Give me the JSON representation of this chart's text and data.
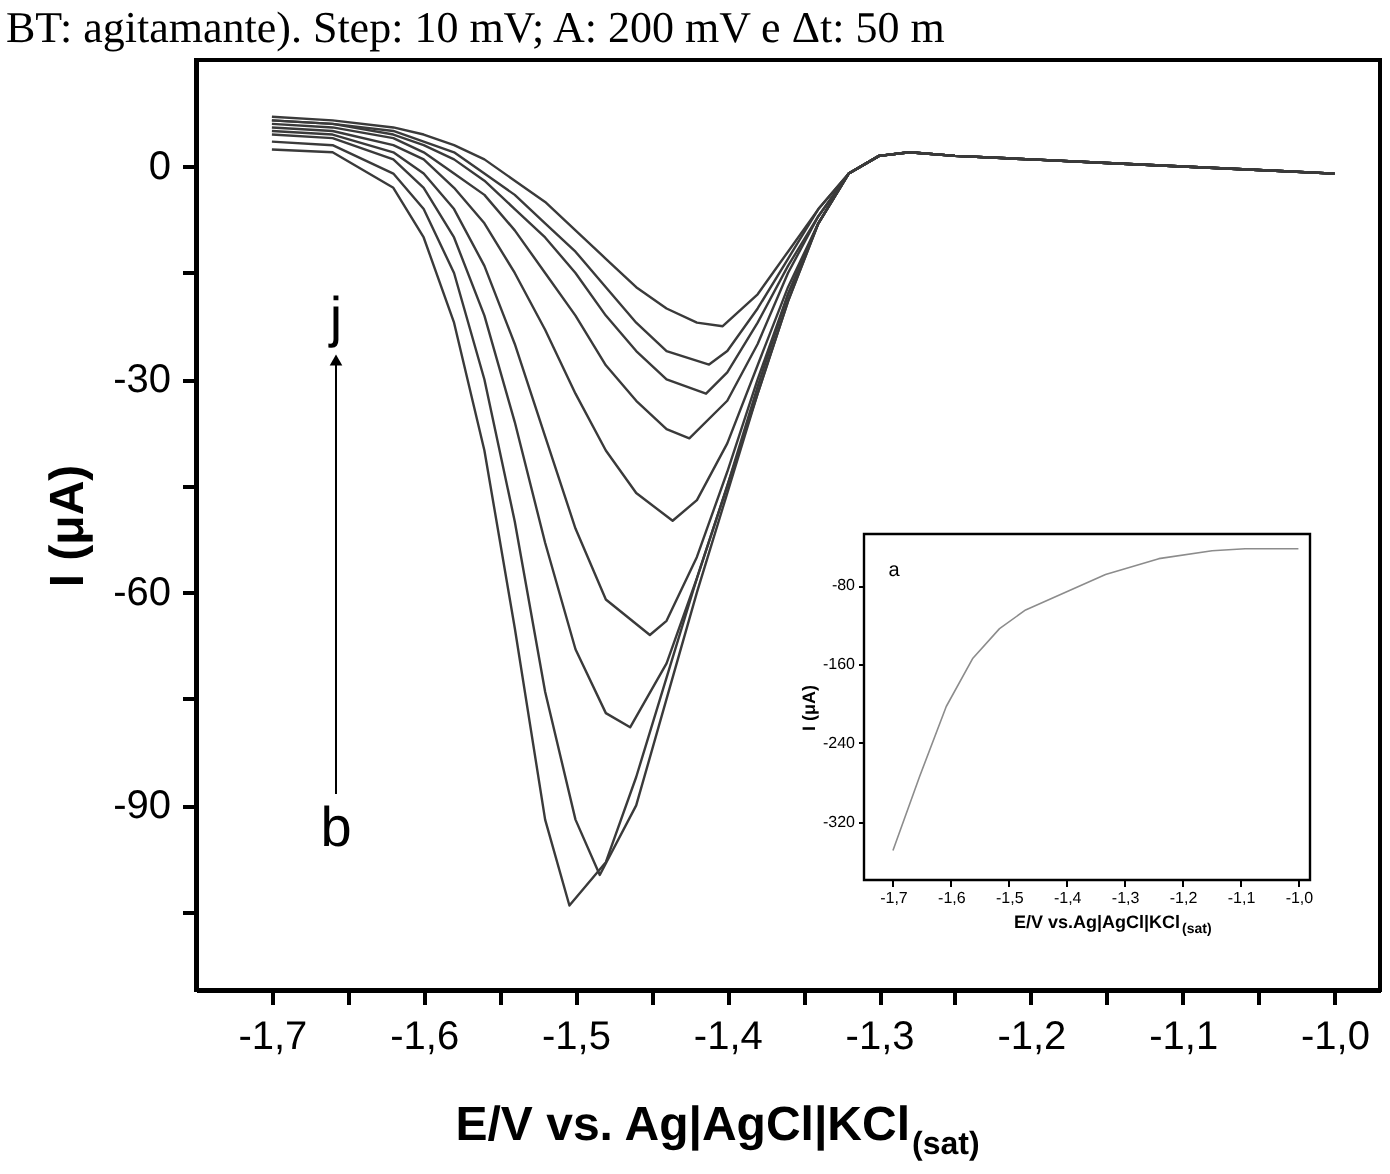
{
  "chart_data": [
    {
      "type": "line",
      "xlabel": "E/V vs. Ag|AgCl|KCl$_{(sat)}$",
      "ylabel": "I (μA)",
      "xlim": [
        -1.75,
        -0.97
      ],
      "ylim": [
        -116,
        15
      ],
      "grid": false,
      "legend": false,
      "marker": "none",
      "line_style": "solid",
      "xticks": [
        {
          "value": -1.7,
          "label": "-1,7"
        },
        {
          "value": -1.65,
          "label": null
        },
        {
          "value": -1.6,
          "label": "-1,6"
        },
        {
          "value": -1.55,
          "label": null
        },
        {
          "value": -1.5,
          "label": "-1,5"
        },
        {
          "value": -1.45,
          "label": null
        },
        {
          "value": -1.4,
          "label": "-1,4"
        },
        {
          "value": -1.35,
          "label": null
        },
        {
          "value": -1.3,
          "label": "-1,3"
        },
        {
          "value": -1.25,
          "label": null
        },
        {
          "value": -1.2,
          "label": "-1,2"
        },
        {
          "value": -1.15,
          "label": null
        },
        {
          "value": -1.1,
          "label": "-1,1"
        },
        {
          "value": -1.05,
          "label": null
        },
        {
          "value": -1.0,
          "label": "-1,0"
        }
      ],
      "yticks": [
        {
          "value": -105,
          "label": null
        },
        -90,
        {
          "value": -75,
          "label": null
        },
        -60,
        {
          "value": -45,
          "label": null
        },
        -30,
        {
          "value": -15,
          "label": null
        },
        0
      ],
      "annotations": [
        "BT: agitamante). Step: 10 mV; A: 200 mV e Δt: 50 m",
        "b",
        "j"
      ],
      "series": [
        {
          "color": "#3a3a3a",
          "x": [
            -1.7,
            -1.66,
            -1.62,
            -1.6,
            -1.58,
            -1.56,
            -1.54,
            -1.52,
            -1.504,
            -1.48,
            -1.46,
            -1.44,
            -1.42,
            -1.4,
            -1.38,
            -1.36,
            -1.34,
            -1.32,
            -1.3,
            -1.28,
            -1.25,
            -1.2,
            -1.15,
            -1.1,
            -1.05,
            -1.0
          ],
          "values": [
            2.4,
            2,
            -3,
            -10,
            -22,
            -40,
            -65,
            -92,
            -104.1,
            -98,
            -86,
            -72,
            -58,
            -45,
            -32,
            -19,
            -8,
            -1,
            1.5,
            2,
            1.5,
            1,
            0.5,
            0,
            -0.5,
            -1
          ]
        },
        {
          "color": "#3a3a3a",
          "x": [
            -1.7,
            -1.66,
            -1.62,
            -1.6,
            -1.58,
            -1.56,
            -1.54,
            -1.52,
            -1.5,
            -1.484,
            -1.46,
            -1.44,
            -1.42,
            -1.4,
            -1.38,
            -1.36,
            -1.34,
            -1.32,
            -1.3,
            -1.28,
            -1.25,
            -1.2,
            -1.15,
            -1.1,
            -1.05,
            -1.0
          ],
          "values": [
            3.5,
            3,
            -1,
            -6,
            -15,
            -30,
            -50,
            -74,
            -92,
            -99.8,
            -90,
            -75,
            -60,
            -46,
            -32,
            -19,
            -8,
            -1,
            1.5,
            2,
            1.5,
            1,
            0.5,
            0,
            -0.5,
            -1
          ]
        },
        {
          "color": "#3a3a3a",
          "x": [
            -1.7,
            -1.66,
            -1.62,
            -1.6,
            -1.58,
            -1.56,
            -1.54,
            -1.52,
            -1.5,
            -1.48,
            -1.464,
            -1.44,
            -1.42,
            -1.4,
            -1.38,
            -1.36,
            -1.34,
            -1.32,
            -1.3,
            -1.28,
            -1.25,
            -1.2,
            -1.15,
            -1.1,
            -1.05,
            -1.0
          ],
          "values": [
            4.5,
            4,
            1,
            -3,
            -10,
            -21,
            -36,
            -53,
            -68,
            -77,
            -79,
            -70,
            -58,
            -45,
            -31,
            -18,
            -8,
            -1,
            1.5,
            2,
            1.5,
            1,
            0.5,
            0,
            -0.5,
            -1
          ]
        },
        {
          "color": "#3a3a3a",
          "x": [
            -1.7,
            -1.66,
            -1.62,
            -1.6,
            -1.58,
            -1.56,
            -1.54,
            -1.52,
            -1.5,
            -1.48,
            -1.451,
            -1.44,
            -1.42,
            -1.4,
            -1.38,
            -1.36,
            -1.34,
            -1.32,
            -1.3,
            -1.28,
            -1.25,
            -1.2,
            -1.15,
            -1.1,
            -1.05,
            -1.0
          ],
          "values": [
            5,
            4.5,
            2,
            -1,
            -6,
            -14,
            -25,
            -38,
            -51,
            -61,
            -66,
            -64,
            -55,
            -43,
            -30,
            -18,
            -8,
            -1,
            1.5,
            2,
            1.5,
            1,
            0.5,
            0,
            -0.5,
            -1
          ]
        },
        {
          "color": "#3a3a3a",
          "x": [
            -1.7,
            -1.66,
            -1.62,
            -1.6,
            -1.58,
            -1.56,
            -1.54,
            -1.52,
            -1.5,
            -1.48,
            -1.46,
            -1.436,
            -1.42,
            -1.4,
            -1.38,
            -1.36,
            -1.34,
            -1.32,
            -1.3,
            -1.28,
            -1.25,
            -1.2,
            -1.15,
            -1.1,
            -1.05,
            -1.0
          ],
          "values": [
            5.5,
            5,
            3,
            1,
            -3,
            -8,
            -15,
            -23,
            -32,
            -40,
            -46,
            -49.9,
            -47,
            -39,
            -28,
            -17,
            -8,
            -1,
            1.5,
            2,
            1.5,
            1,
            0.5,
            0,
            -0.5,
            -1
          ]
        },
        {
          "color": "#3a3a3a",
          "x": [
            -1.7,
            -1.66,
            -1.62,
            -1.6,
            -1.58,
            -1.56,
            -1.54,
            -1.52,
            -1.5,
            -1.48,
            -1.46,
            -1.44,
            -1.425,
            -1.4,
            -1.38,
            -1.36,
            -1.34,
            -1.32,
            -1.3,
            -1.28,
            -1.25,
            -1.2,
            -1.15,
            -1.1,
            -1.05,
            -1.0
          ],
          "values": [
            6,
            5.5,
            4,
            2,
            -1,
            -4,
            -9,
            -15,
            -21,
            -28,
            -33,
            -37,
            -38.3,
            -33,
            -25,
            -15,
            -7,
            -1,
            1.5,
            2,
            1.5,
            1,
            0.5,
            0,
            -0.5,
            -1
          ]
        },
        {
          "color": "#3a3a3a",
          "x": [
            -1.7,
            -1.66,
            -1.62,
            -1.6,
            -1.58,
            -1.56,
            -1.54,
            -1.52,
            -1.5,
            -1.48,
            -1.46,
            -1.44,
            -1.414,
            -1.4,
            -1.38,
            -1.36,
            -1.34,
            -1.32,
            -1.3,
            -1.28,
            -1.25,
            -1.2,
            -1.15,
            -1.1,
            -1.05,
            -1.0
          ],
          "values": [
            6.5,
            6,
            4.5,
            3,
            1,
            -2,
            -6,
            -10,
            -15,
            -21,
            -26,
            -30,
            -32,
            -29,
            -22,
            -14,
            -7,
            -1,
            1.5,
            2,
            1.5,
            1,
            0.5,
            0,
            -0.5,
            -1
          ]
        },
        {
          "color": "#3a3a3a",
          "x": [
            -1.7,
            -1.66,
            -1.62,
            -1.6,
            -1.58,
            -1.56,
            -1.54,
            -1.52,
            -1.5,
            -1.48,
            -1.46,
            -1.44,
            -1.412,
            -1.4,
            -1.38,
            -1.36,
            -1.34,
            -1.32,
            -1.3,
            -1.28,
            -1.25,
            -1.2,
            -1.15,
            -1.1,
            -1.05,
            -1.0
          ],
          "values": [
            6.5,
            6,
            5,
            3.5,
            2,
            -1,
            -4,
            -8,
            -12,
            -17,
            -22,
            -26,
            -27.9,
            -26,
            -20,
            -13,
            -6,
            -1,
            1.5,
            2,
            1.5,
            1,
            0.5,
            0,
            -0.5,
            -1
          ]
        },
        {
          "color": "#3a3a3a",
          "x": [
            -1.7,
            -1.66,
            -1.62,
            -1.6,
            -1.58,
            -1.56,
            -1.54,
            -1.52,
            -1.5,
            -1.48,
            -1.46,
            -1.44,
            -1.42,
            -1.403,
            -1.38,
            -1.36,
            -1.34,
            -1.32,
            -1.3,
            -1.28,
            -1.25,
            -1.2,
            -1.15,
            -1.1,
            -1.05,
            -1.0
          ],
          "values": [
            7,
            6.5,
            5.5,
            4.5,
            3,
            1,
            -2,
            -5,
            -9,
            -13,
            -17,
            -20,
            -22,
            -22.5,
            -18,
            -12,
            -6,
            -1,
            1.5,
            2,
            1.5,
            1,
            0.5,
            0,
            -0.5,
            -1
          ]
        }
      ]
    },
    {
      "type": "line",
      "xlabel": "E/V vs.Ag|AgCl|KCl$_{(sat)}$",
      "ylabel": "I (μA)",
      "xlim": [
        -1.75,
        -0.98
      ],
      "ylim": [
        -379,
        -28
      ],
      "grid": false,
      "legend": false,
      "marker": "none",
      "line_style": "solid",
      "xticks": [
        {
          "value": -1.7,
          "label": "-1,7"
        },
        {
          "value": -1.6,
          "label": "-1,6"
        },
        {
          "value": -1.5,
          "label": "-1,5"
        },
        {
          "value": -1.4,
          "label": "-1,4"
        },
        {
          "value": -1.3,
          "label": "-1,3"
        },
        {
          "value": -1.2,
          "label": "-1,2"
        },
        {
          "value": -1.1,
          "label": "-1,1"
        },
        {
          "value": -1.0,
          "label": "-1,0"
        }
      ],
      "yticks": [
        -320,
        -240,
        -160,
        -80
      ],
      "annotations": [
        "a"
      ],
      "series": [
        {
          "color": "#8c8c8c",
          "x": [
            -1.7,
            -1.654,
            -1.608,
            -1.562,
            -1.516,
            -1.471,
            -1.402,
            -1.333,
            -1.241,
            -1.149,
            -1.092,
            -1.0
          ],
          "values": [
            -349,
            -274,
            -203,
            -154,
            -124,
            -105,
            -87,
            -69,
            -53,
            -45,
            -43,
            -43
          ]
        }
      ]
    }
  ]
}
